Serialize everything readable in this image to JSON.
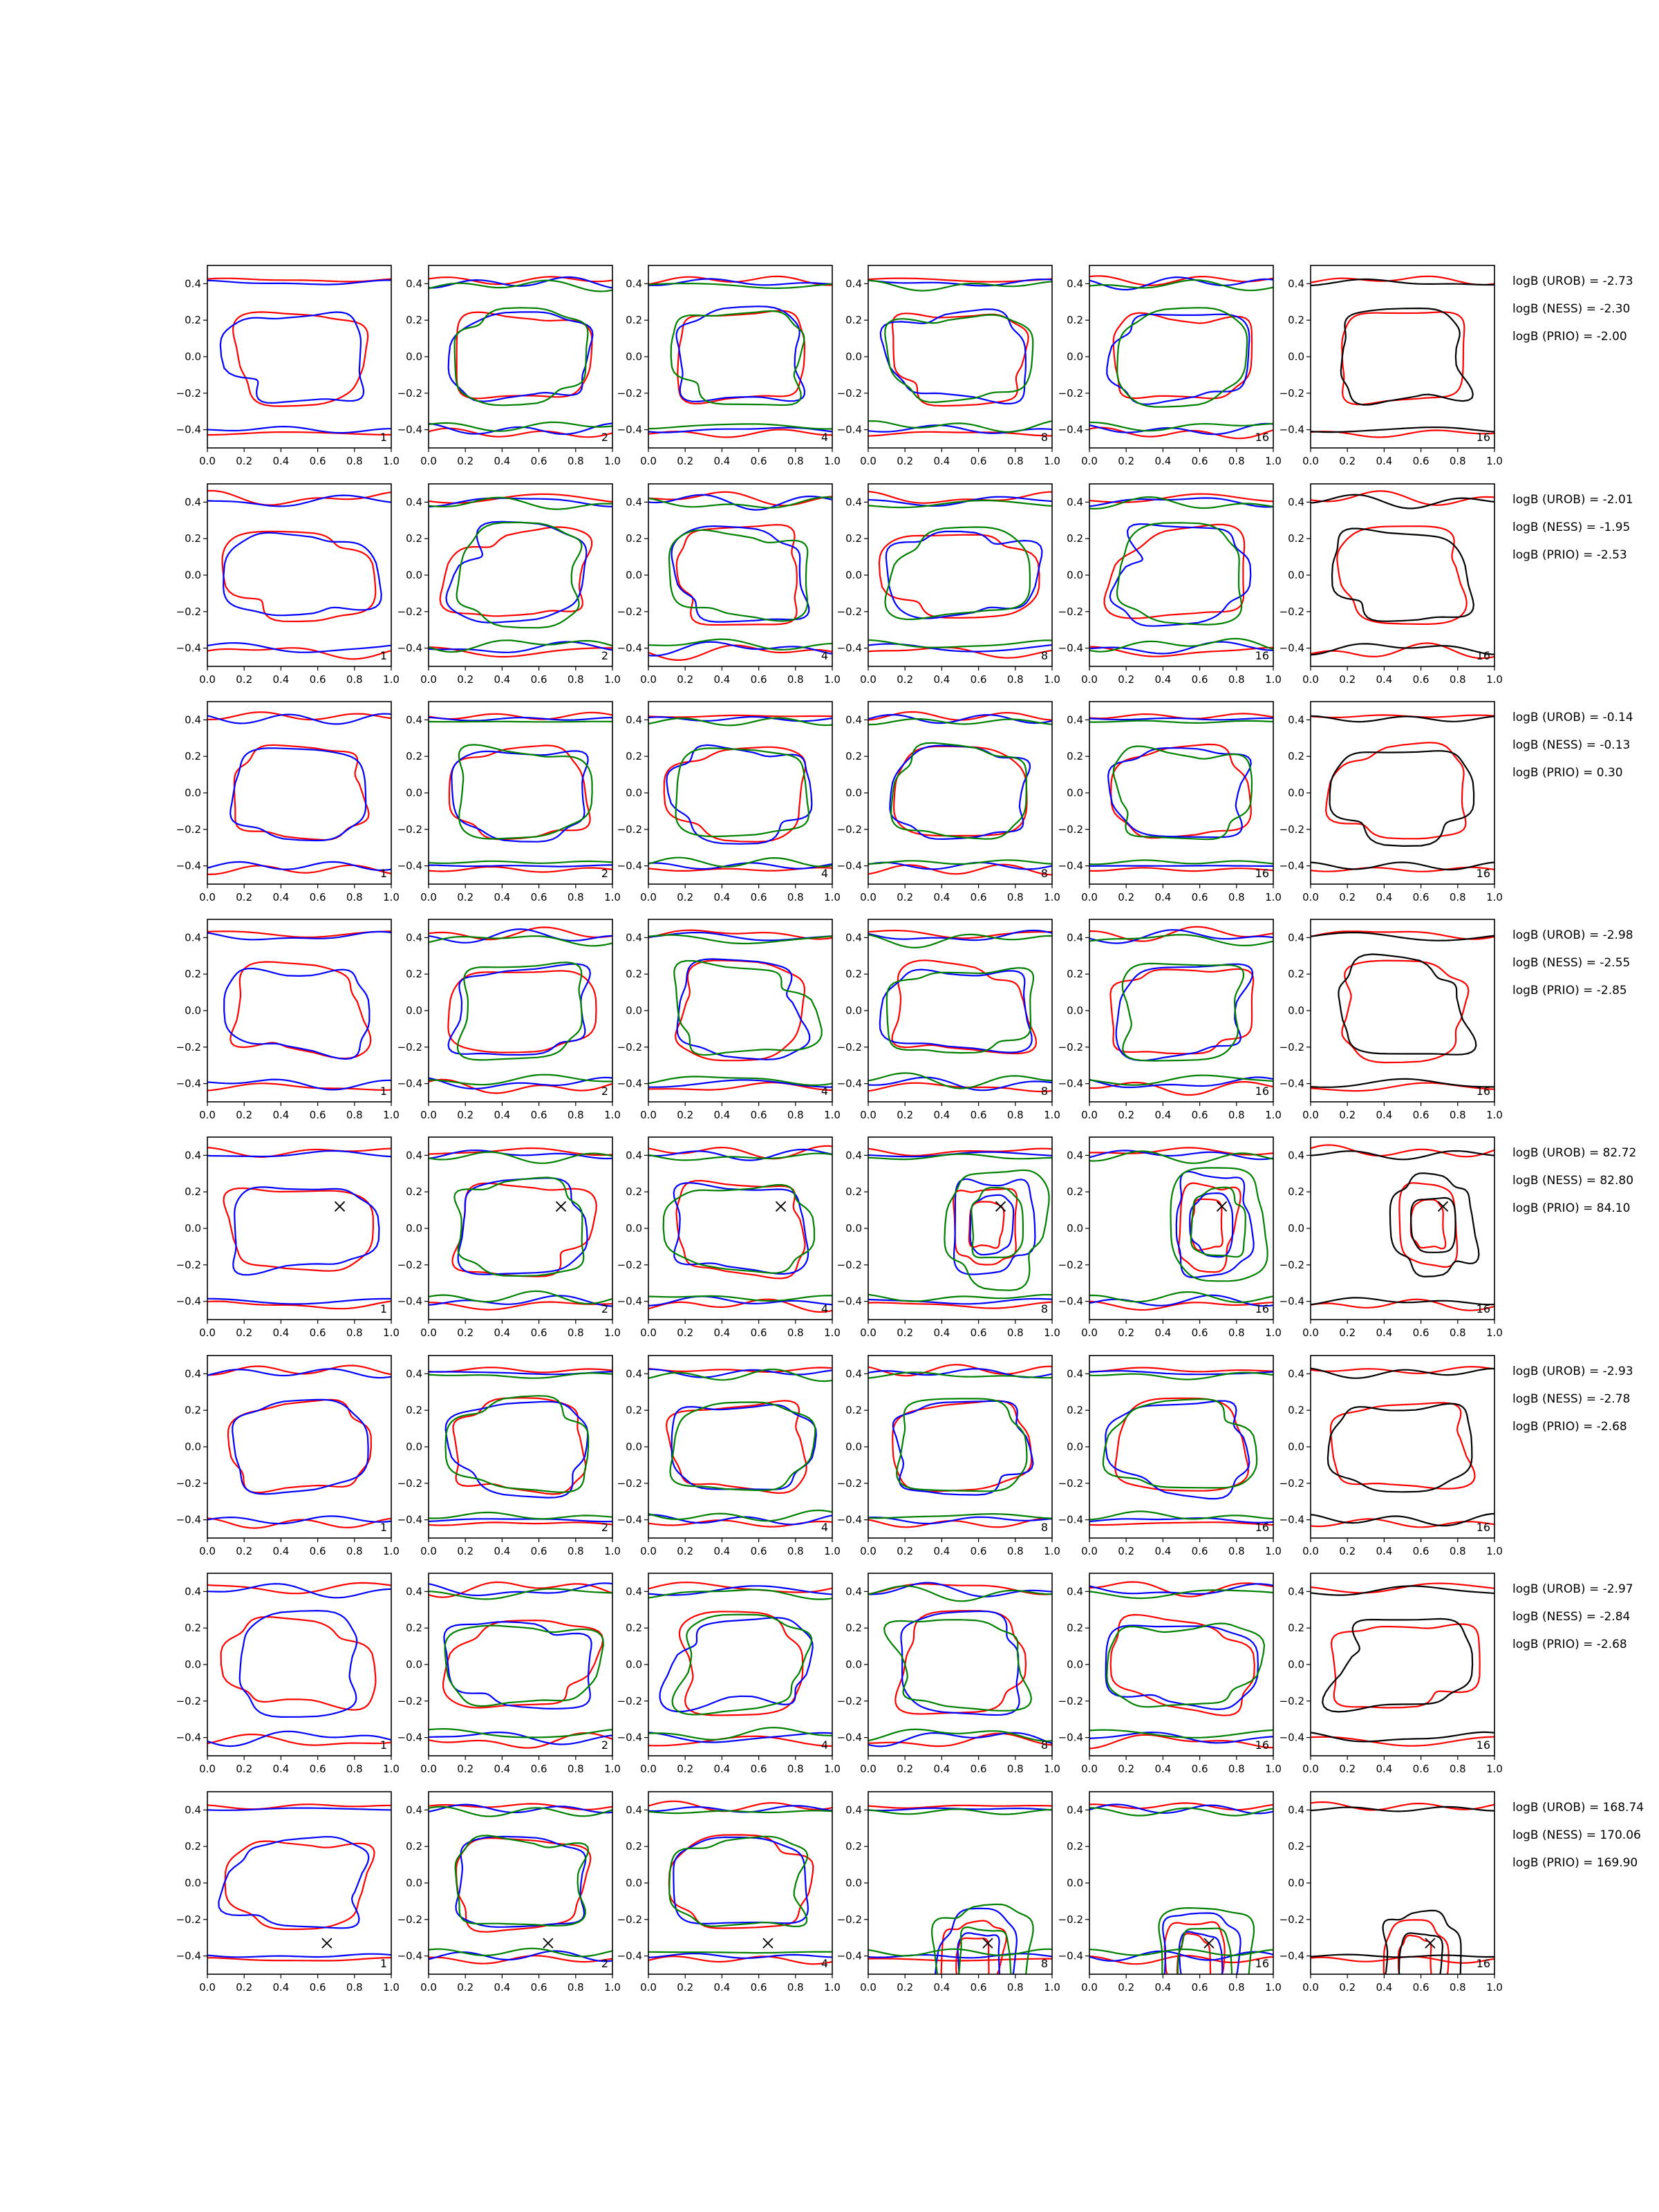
{
  "chart_data": {
    "type": "contour-grid",
    "rows": 8,
    "columns": 6,
    "xlim": [
      0.0,
      1.0
    ],
    "ylim": [
      -0.5,
      0.5
    ],
    "x_ticks": [
      "0.0",
      "0.2",
      "0.4",
      "0.6",
      "0.8",
      "1.0"
    ],
    "y_ticks": [
      "0.4",
      "0.2",
      "0.0",
      "−0.2",
      "−0.4"
    ],
    "panel_labels": [
      "1",
      "2",
      "4",
      "8",
      "16",
      "16"
    ],
    "colors": {
      "red": "#ff0000",
      "blue": "#0000ff",
      "green": "#008000",
      "black": "#000000"
    },
    "row_stats": [
      {
        "lines": [
          "logB (UROB) = -2.73",
          "logB (NESS) = -2.30",
          "logB (PRIO) = -2.00"
        ],
        "marker": null
      },
      {
        "lines": [
          "logB (UROB) = -2.01",
          "logB (NESS) = -1.95",
          "logB (PRIO) = -2.53"
        ],
        "marker": null
      },
      {
        "lines": [
          "logB (UROB) = -0.14",
          "logB (NESS) = -0.13",
          "logB (PRIO) = 0.30"
        ],
        "marker": null
      },
      {
        "lines": [
          "logB (UROB) = -2.98",
          "logB (NESS) = -2.55",
          "logB (PRIO) = -2.85"
        ],
        "marker": null
      },
      {
        "lines": [
          "logB (UROB) = 82.72",
          "logB (NESS) = 82.80",
          "logB (PRIO) = 84.10"
        ],
        "marker": [
          0.72,
          0.12
        ]
      },
      {
        "lines": [
          "logB (UROB) = -2.93",
          "logB (NESS) = -2.78",
          "logB (PRIO) = -2.68"
        ],
        "marker": null
      },
      {
        "lines": [
          "logB (UROB) = -2.97",
          "logB (NESS) = -2.84",
          "logB (PRIO) = -2.68"
        ],
        "marker": null
      },
      {
        "lines": [
          "logB (UROB) = 168.74",
          "logB (NESS) = 170.06",
          "logB (PRIO) = 169.90"
        ],
        "marker": [
          0.65,
          -0.33
        ]
      }
    ],
    "column_series": [
      [
        "red",
        "blue"
      ],
      [
        "red",
        "blue",
        "green"
      ],
      [
        "red",
        "blue",
        "green"
      ],
      [
        "red",
        "blue",
        "green"
      ],
      [
        "red",
        "blue",
        "green"
      ],
      [
        "red",
        "black"
      ]
    ]
  }
}
